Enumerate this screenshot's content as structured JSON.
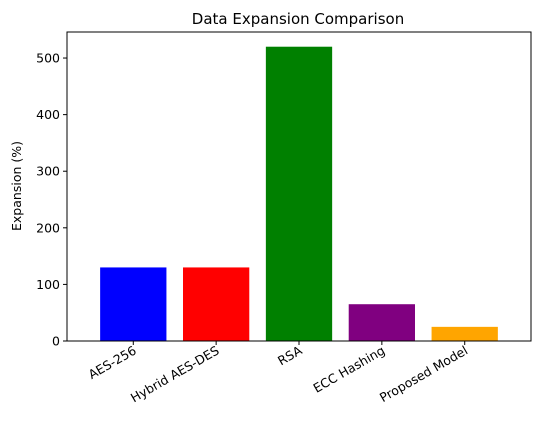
{
  "chart_data": {
    "type": "bar",
    "title": "Data Expansion Comparison",
    "xlabel": "",
    "ylabel": "Expansion (%)",
    "categories": [
      "AES-256",
      "Hybrid AES-DES",
      "RSA",
      "ECC Hashing",
      "Proposed Model"
    ],
    "values": [
      130,
      130,
      520,
      65,
      25
    ],
    "colors": [
      "#0000ff",
      "#ff0000",
      "#008000",
      "#800080",
      "#ffa500"
    ],
    "ylim": [
      0,
      546
    ],
    "yticks": [
      0,
      100,
      200,
      300,
      400,
      500
    ],
    "grid": false,
    "legend": "none",
    "xtick_rotation": 30
  }
}
